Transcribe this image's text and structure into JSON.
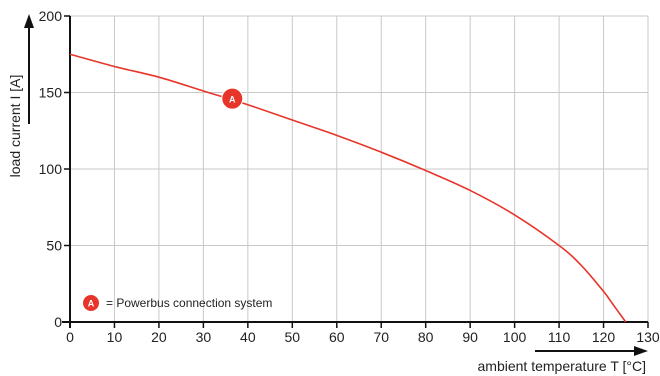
{
  "chart_data": {
    "type": "line",
    "xlabel": "ambient temperature T [°C]",
    "ylabel": "load current I [A]",
    "xlim": [
      0,
      130
    ],
    "ylim": [
      0,
      200
    ],
    "x_ticks": [
      0,
      10,
      20,
      30,
      40,
      50,
      60,
      70,
      80,
      90,
      100,
      110,
      120,
      130
    ],
    "y_ticks": [
      0,
      50,
      100,
      150,
      200
    ],
    "grid": true,
    "series": [
      {
        "color": "#e8352a",
        "x": [
          0,
          10,
          20,
          30,
          40,
          50,
          60,
          70,
          80,
          90,
          100,
          110,
          115,
          120,
          122,
          124,
          125
        ],
        "y": [
          175,
          167,
          160,
          151,
          142,
          132,
          122,
          111,
          99,
          86,
          70,
          50,
          37,
          20,
          12,
          4,
          0
        ]
      }
    ],
    "annotations": [
      {
        "label": "A",
        "x": 36.5,
        "y": 146
      }
    ],
    "legend": {
      "marker": "A",
      "text": "= Powerbus connection system",
      "position": "bottom-left"
    },
    "colors": {
      "curve": "#e8352a",
      "marker": "#e8352a",
      "grid": "#c9c9c9",
      "axis": "#111111"
    }
  }
}
